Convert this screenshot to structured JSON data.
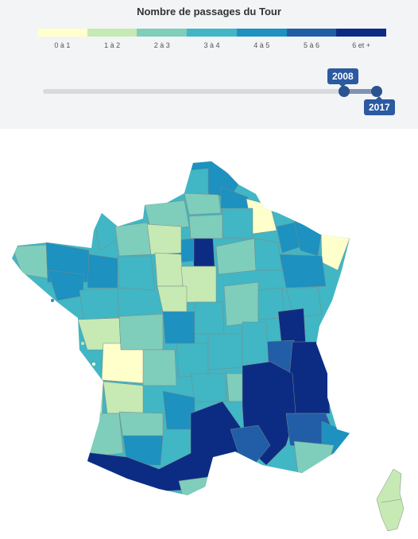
{
  "legend": {
    "title": "Nombre de passages du Tour",
    "classes": [
      {
        "label": "0 à 1",
        "color": "#ffffcc"
      },
      {
        "label": "1 à 2",
        "color": "#c7e9b4"
      },
      {
        "label": "2 à 3",
        "color": "#7fcdbb"
      },
      {
        "label": "3 à 4",
        "color": "#41b6c4"
      },
      {
        "label": "4 à 5",
        "color": "#1d91c0"
      },
      {
        "label": "5 à 6",
        "color": "#225ea8"
      },
      {
        "label": "6 et +",
        "color": "#0c2c84"
      }
    ]
  },
  "slider": {
    "min_label": "2008",
    "max_label": "2017"
  }
}
